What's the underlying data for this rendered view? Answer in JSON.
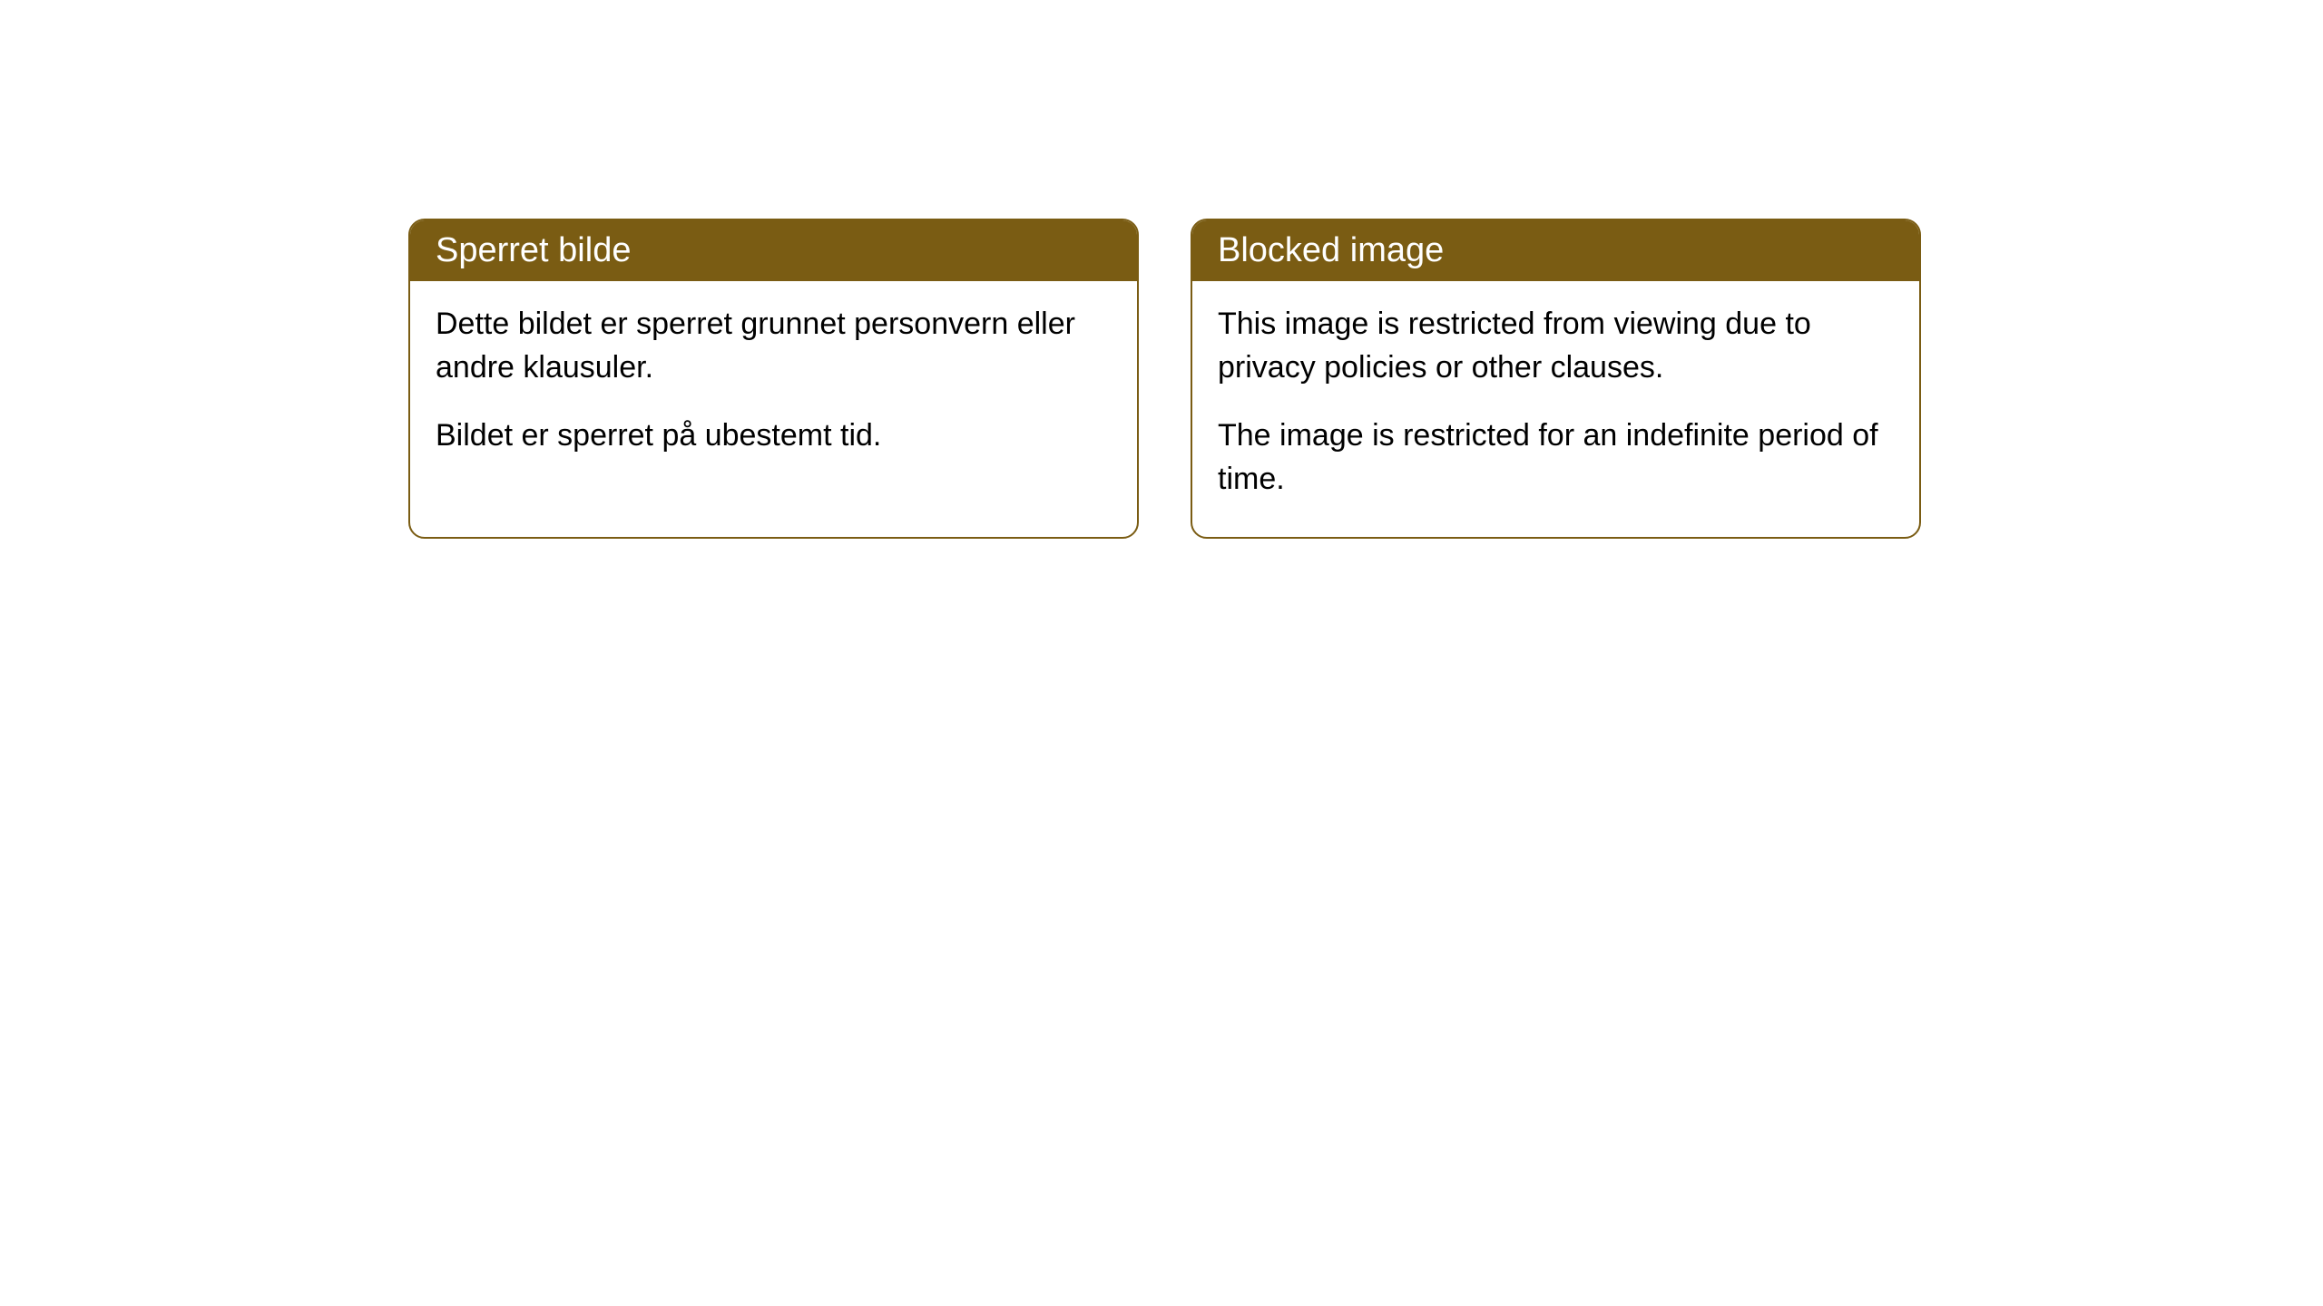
{
  "cards": [
    {
      "title": "Sperret bilde",
      "paragraph1": "Dette bildet er sperret grunnet personvern eller andre klausuler.",
      "paragraph2": "Bildet er sperret på ubestemt tid."
    },
    {
      "title": "Blocked image",
      "paragraph1": "This image is restricted from viewing due to privacy policies or other clauses.",
      "paragraph2": "The image is restricted for an indefinite period of time."
    }
  ],
  "style": {
    "header_bg_color": "#7a5c13",
    "header_text_color": "#ffffff",
    "border_color": "#7a5c13",
    "body_bg_color": "#ffffff",
    "body_text_color": "#000000",
    "border_radius": 18,
    "header_fontsize": 38,
    "body_fontsize": 34
  }
}
